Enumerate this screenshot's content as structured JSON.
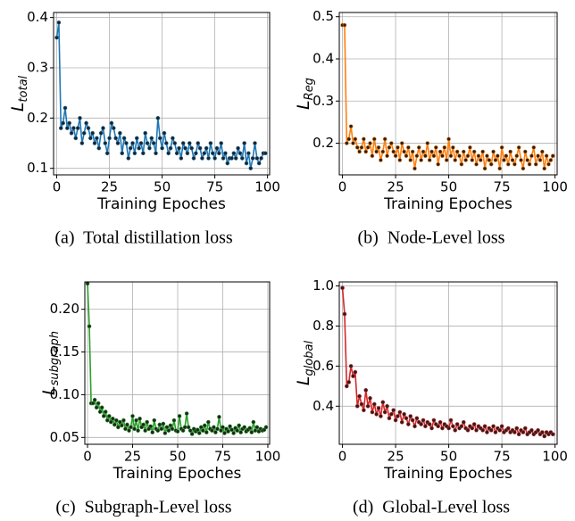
{
  "chart_data": [
    {
      "type": "line",
      "ylabel": {
        "symbol": "L",
        "subscript": "total"
      },
      "xlabel": "Training Epoches",
      "caption": "(a)  Total distillation loss",
      "x": [
        0,
        1,
        2,
        3,
        4,
        5,
        6,
        7,
        8,
        9,
        10,
        11,
        12,
        13,
        14,
        15,
        16,
        17,
        18,
        19,
        20,
        21,
        22,
        23,
        24,
        25,
        26,
        27,
        28,
        29,
        30,
        31,
        32,
        33,
        34,
        35,
        36,
        37,
        38,
        39,
        40,
        41,
        42,
        43,
        44,
        45,
        46,
        47,
        48,
        49,
        50,
        51,
        52,
        53,
        54,
        55,
        56,
        57,
        58,
        59,
        60,
        61,
        62,
        63,
        64,
        65,
        66,
        67,
        68,
        69,
        70,
        71,
        72,
        73,
        74,
        75,
        76,
        77,
        78,
        79,
        80,
        81,
        82,
        83,
        84,
        85,
        86,
        87,
        88,
        89,
        90,
        91,
        92,
        93,
        94,
        95,
        96,
        97,
        98,
        99
      ],
      "series": [
        {
          "color": "#1f77b4",
          "values": [
            0.36,
            0.39,
            0.18,
            0.19,
            0.22,
            0.18,
            0.19,
            0.17,
            0.18,
            0.16,
            0.18,
            0.2,
            0.15,
            0.17,
            0.19,
            0.18,
            0.16,
            0.17,
            0.15,
            0.16,
            0.14,
            0.17,
            0.18,
            0.15,
            0.13,
            0.16,
            0.19,
            0.18,
            0.16,
            0.15,
            0.17,
            0.13,
            0.16,
            0.15,
            0.12,
            0.14,
            0.15,
            0.13,
            0.16,
            0.14,
            0.15,
            0.13,
            0.17,
            0.15,
            0.14,
            0.16,
            0.15,
            0.13,
            0.2,
            0.16,
            0.14,
            0.17,
            0.15,
            0.13,
            0.14,
            0.16,
            0.15,
            0.13,
            0.14,
            0.12,
            0.15,
            0.14,
            0.13,
            0.15,
            0.14,
            0.12,
            0.13,
            0.15,
            0.14,
            0.12,
            0.13,
            0.14,
            0.12,
            0.15,
            0.13,
            0.12,
            0.14,
            0.13,
            0.15,
            0.12,
            0.13,
            0.11,
            0.12,
            0.12,
            0.13,
            0.12,
            0.14,
            0.13,
            0.12,
            0.15,
            0.11,
            0.13,
            0.1,
            0.12,
            0.15,
            0.12,
            0.11,
            0.12,
            0.13,
            0.13
          ]
        }
      ],
      "xlim": [
        -1.5,
        101
      ],
      "ylim": [
        0.087,
        0.41
      ],
      "xticks": [
        0,
        25,
        50,
        75,
        100
      ],
      "yticks": [
        0.1,
        0.2,
        0.3,
        0.4
      ],
      "grid": true
    },
    {
      "type": "line",
      "ylabel": {
        "symbol": "L",
        "subscript": "Reg"
      },
      "xlabel": "Training Epoches",
      "caption": "(b)  Node-Level loss",
      "x": [
        0,
        1,
        2,
        3,
        4,
        5,
        6,
        7,
        8,
        9,
        10,
        11,
        12,
        13,
        14,
        15,
        16,
        17,
        18,
        19,
        20,
        21,
        22,
        23,
        24,
        25,
        26,
        27,
        28,
        29,
        30,
        31,
        32,
        33,
        34,
        35,
        36,
        37,
        38,
        39,
        40,
        41,
        42,
        43,
        44,
        45,
        46,
        47,
        48,
        49,
        50,
        51,
        52,
        53,
        54,
        55,
        56,
        57,
        58,
        59,
        60,
        61,
        62,
        63,
        64,
        65,
        66,
        67,
        68,
        69,
        70,
        71,
        72,
        73,
        74,
        75,
        76,
        77,
        78,
        79,
        80,
        81,
        82,
        83,
        84,
        85,
        86,
        87,
        88,
        89,
        90,
        91,
        92,
        93,
        94,
        95,
        96,
        97,
        98,
        99
      ],
      "series": [
        {
          "color": "#ff7f0e",
          "values": [
            0.48,
            0.48,
            0.2,
            0.21,
            0.24,
            0.2,
            0.21,
            0.19,
            0.18,
            0.19,
            0.21,
            0.18,
            0.19,
            0.2,
            0.17,
            0.21,
            0.18,
            0.19,
            0.16,
            0.18,
            0.21,
            0.17,
            0.19,
            0.2,
            0.18,
            0.17,
            0.19,
            0.16,
            0.2,
            0.18,
            0.17,
            0.19,
            0.16,
            0.18,
            0.14,
            0.17,
            0.19,
            0.16,
            0.18,
            0.17,
            0.2,
            0.16,
            0.18,
            0.17,
            0.19,
            0.15,
            0.18,
            0.17,
            0.19,
            0.16,
            0.21,
            0.17,
            0.19,
            0.16,
            0.18,
            0.17,
            0.15,
            0.18,
            0.16,
            0.17,
            0.19,
            0.16,
            0.18,
            0.15,
            0.17,
            0.16,
            0.18,
            0.14,
            0.17,
            0.16,
            0.15,
            0.18,
            0.16,
            0.17,
            0.14,
            0.19,
            0.16,
            0.17,
            0.15,
            0.18,
            0.16,
            0.15,
            0.17,
            0.19,
            0.16,
            0.14,
            0.18,
            0.16,
            0.15,
            0.17,
            0.19,
            0.15,
            0.17,
            0.16,
            0.18,
            0.14,
            0.17,
            0.15,
            0.16,
            0.17
          ]
        }
      ],
      "xlim": [
        -1.5,
        101
      ],
      "ylim": [
        0.125,
        0.51
      ],
      "xticks": [
        0,
        25,
        50,
        75,
        100
      ],
      "yticks": [
        0.2,
        0.3,
        0.4,
        0.5
      ],
      "grid": true
    },
    {
      "type": "line",
      "ylabel": {
        "symbol": "L",
        "subscript": "subgraph"
      },
      "xlabel": "Training Epoches",
      "caption": "(c)  Subgraph-Level loss",
      "x": [
        0,
        1,
        2,
        3,
        4,
        5,
        6,
        7,
        8,
        9,
        10,
        11,
        12,
        13,
        14,
        15,
        16,
        17,
        18,
        19,
        20,
        21,
        22,
        23,
        24,
        25,
        26,
        27,
        28,
        29,
        30,
        31,
        32,
        33,
        34,
        35,
        36,
        37,
        38,
        39,
        40,
        41,
        42,
        43,
        44,
        45,
        46,
        47,
        48,
        49,
        50,
        51,
        52,
        53,
        54,
        55,
        56,
        57,
        58,
        59,
        60,
        61,
        62,
        63,
        64,
        65,
        66,
        67,
        68,
        69,
        70,
        71,
        72,
        73,
        74,
        75,
        76,
        77,
        78,
        79,
        80,
        81,
        82,
        83,
        84,
        85,
        86,
        87,
        88,
        89,
        90,
        91,
        92,
        93,
        94,
        95,
        96,
        97,
        98,
        99
      ],
      "series": [
        {
          "color": "#2ca02c",
          "values": [
            0.23,
            0.18,
            0.09,
            0.09,
            0.094,
            0.085,
            0.09,
            0.08,
            0.085,
            0.075,
            0.08,
            0.07,
            0.075,
            0.068,
            0.072,
            0.065,
            0.07,
            0.062,
            0.068,
            0.064,
            0.07,
            0.06,
            0.065,
            0.058,
            0.062,
            0.075,
            0.06,
            0.07,
            0.058,
            0.072,
            0.062,
            0.065,
            0.058,
            0.068,
            0.06,
            0.063,
            0.056,
            0.07,
            0.06,
            0.058,
            0.065,
            0.06,
            0.066,
            0.055,
            0.062,
            0.058,
            0.064,
            0.06,
            0.07,
            0.058,
            0.057,
            0.075,
            0.06,
            0.058,
            0.062,
            0.078,
            0.062,
            0.058,
            0.054,
            0.06,
            0.057,
            0.059,
            0.055,
            0.062,
            0.058,
            0.064,
            0.056,
            0.068,
            0.06,
            0.058,
            0.062,
            0.056,
            0.06,
            0.074,
            0.058,
            0.062,
            0.055,
            0.06,
            0.057,
            0.063,
            0.059,
            0.055,
            0.061,
            0.058,
            0.064,
            0.056,
            0.06,
            0.062,
            0.057,
            0.059,
            0.061,
            0.056,
            0.068,
            0.058,
            0.062,
            0.057,
            0.06,
            0.058,
            0.059,
            0.062
          ]
        }
      ],
      "xlim": [
        -1.5,
        101
      ],
      "ylim": [
        0.042,
        0.232
      ],
      "xticks": [
        0,
        25,
        50,
        75,
        100
      ],
      "yticks": [
        {
          "value": 0.05,
          "label": "0.05"
        },
        {
          "value": 0.1,
          "label": "0.10"
        },
        {
          "value": 0.15,
          "label": "0.15"
        },
        {
          "value": 0.2,
          "label": "0.20"
        }
      ],
      "grid": true
    },
    {
      "type": "line",
      "ylabel": {
        "symbol": "L",
        "subscript": "global"
      },
      "xlabel": "Training Epoches",
      "caption": "(d)  Global-Level loss",
      "x": [
        0,
        1,
        2,
        3,
        4,
        5,
        6,
        7,
        8,
        9,
        10,
        11,
        12,
        13,
        14,
        15,
        16,
        17,
        18,
        19,
        20,
        21,
        22,
        23,
        24,
        25,
        26,
        27,
        28,
        29,
        30,
        31,
        32,
        33,
        34,
        35,
        36,
        37,
        38,
        39,
        40,
        41,
        42,
        43,
        44,
        45,
        46,
        47,
        48,
        49,
        50,
        51,
        52,
        53,
        54,
        55,
        56,
        57,
        58,
        59,
        60,
        61,
        62,
        63,
        64,
        65,
        66,
        67,
        68,
        69,
        70,
        71,
        72,
        73,
        74,
        75,
        76,
        77,
        78,
        79,
        80,
        81,
        82,
        83,
        84,
        85,
        86,
        87,
        88,
        89,
        90,
        91,
        92,
        93,
        94,
        95,
        96,
        97,
        98,
        99
      ],
      "series": [
        {
          "color": "#d62728",
          "values": [
            0.99,
            0.86,
            0.5,
            0.52,
            0.6,
            0.55,
            0.57,
            0.4,
            0.45,
            0.41,
            0.38,
            0.48,
            0.4,
            0.44,
            0.37,
            0.41,
            0.36,
            0.39,
            0.35,
            0.42,
            0.37,
            0.4,
            0.34,
            0.36,
            0.38,
            0.33,
            0.35,
            0.37,
            0.32,
            0.36,
            0.34,
            0.31,
            0.35,
            0.33,
            0.3,
            0.34,
            0.32,
            0.31,
            0.33,
            0.3,
            0.32,
            0.31,
            0.29,
            0.33,
            0.31,
            0.3,
            0.32,
            0.29,
            0.31,
            0.3,
            0.29,
            0.33,
            0.3,
            0.28,
            0.31,
            0.29,
            0.3,
            0.32,
            0.29,
            0.28,
            0.3,
            0.29,
            0.31,
            0.28,
            0.3,
            0.29,
            0.28,
            0.3,
            0.27,
            0.29,
            0.28,
            0.3,
            0.27,
            0.29,
            0.28,
            0.3,
            0.27,
            0.28,
            0.29,
            0.27,
            0.28,
            0.27,
            0.29,
            0.26,
            0.28,
            0.27,
            0.29,
            0.26,
            0.27,
            0.28,
            0.26,
            0.27,
            0.28,
            0.26,
            0.27,
            0.25,
            0.27,
            0.26,
            0.27,
            0.26
          ]
        }
      ],
      "xlim": [
        -1.5,
        101
      ],
      "ylim": [
        0.21,
        1.02
      ],
      "xticks": [
        0,
        25,
        50,
        75,
        100
      ],
      "yticks": [
        0.4,
        0.6,
        0.8,
        {
          "value": 1,
          "label": "1.0"
        }
      ],
      "grid": true
    }
  ]
}
